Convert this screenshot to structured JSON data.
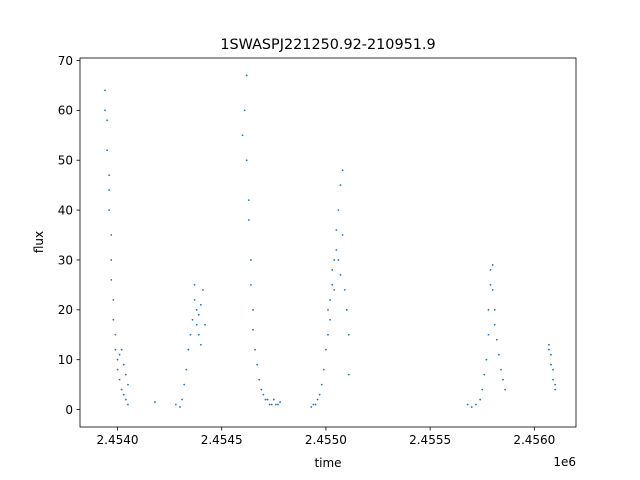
{
  "chart_data": {
    "type": "scatter",
    "title": "1SWASPJ221250.92-210951.9",
    "xlabel": "time",
    "ylabel": "flux",
    "x_offset_label": "1e6",
    "xlim": [
      2.45382,
      2.4562
    ],
    "ylim": [
      -3.5,
      70.5
    ],
    "x_ticks": [
      2.454,
      2.4545,
      2.455,
      2.4555,
      2.456
    ],
    "x_tick_labels": [
      "2.4540",
      "2.4545",
      "2.4550",
      "2.4555",
      "2.4560"
    ],
    "y_ticks": [
      0,
      10,
      20,
      30,
      40,
      50,
      60,
      70
    ],
    "y_tick_labels": [
      "0",
      "10",
      "20",
      "30",
      "40",
      "50",
      "60",
      "70"
    ],
    "grid": false,
    "marker_color": "#1f77b4",
    "series": [
      {
        "x": [
          2.45394,
          2.45394,
          2.45395,
          2.45395,
          2.45396,
          2.45396,
          2.45396,
          2.45397,
          2.45397,
          2.45397,
          2.45398,
          2.45398,
          2.45399,
          2.45399,
          2.454,
          2.454,
          2.45401,
          2.45401,
          2.45402,
          2.45402,
          2.45403,
          2.45403,
          2.45404,
          2.45404,
          2.45405,
          2.45405,
          2.45418,
          2.45428,
          2.4543,
          2.45431,
          2.45432,
          2.45433,
          2.45434,
          2.45435,
          2.45436,
          2.45437,
          2.45437,
          2.45438,
          2.45438,
          2.45439,
          2.45439,
          2.4544,
          2.4544,
          2.45441,
          2.45442,
          2.4546,
          2.45461,
          2.45462,
          2.45462,
          2.45463,
          2.45463,
          2.45464,
          2.45464,
          2.45465,
          2.45465,
          2.45466,
          2.45467,
          2.45468,
          2.45469,
          2.4547,
          2.45471,
          2.45472,
          2.45473,
          2.45474,
          2.45475,
          2.45476,
          2.45477,
          2.45478,
          2.45493,
          2.45494,
          2.45495,
          2.45496,
          2.45497,
          2.45498,
          2.45499,
          2.455,
          2.45501,
          2.45501,
          2.45502,
          2.45502,
          2.45503,
          2.45503,
          2.45504,
          2.45504,
          2.45505,
          2.45505,
          2.45506,
          2.45506,
          2.45507,
          2.45507,
          2.45508,
          2.45508,
          2.45509,
          2.4551,
          2.45511,
          2.45511,
          2.45568,
          2.4557,
          2.45572,
          2.45574,
          2.45575,
          2.45576,
          2.45577,
          2.45578,
          2.45578,
          2.45579,
          2.45579,
          2.4558,
          2.4558,
          2.45581,
          2.45581,
          2.45582,
          2.45583,
          2.45584,
          2.45585,
          2.45586,
          2.45607,
          2.45607,
          2.45608,
          2.45608,
          2.45609,
          2.45609,
          2.4561,
          2.4561
        ],
        "y": [
          64,
          60,
          58,
          52,
          47,
          44,
          40,
          35,
          30,
          26,
          22,
          18,
          15,
          12,
          10,
          8,
          11,
          6,
          4,
          12,
          9,
          3,
          7,
          2,
          5,
          1,
          1.5,
          1,
          0.5,
          2,
          5,
          8,
          12,
          15,
          18,
          22,
          25,
          20,
          17,
          15,
          19,
          13,
          21,
          24,
          17,
          55,
          60,
          67,
          50,
          42,
          38,
          30,
          25,
          20,
          16,
          12,
          9,
          6,
          4,
          3,
          2,
          2,
          1,
          1,
          2,
          1,
          1,
          1.5,
          0.5,
          1,
          1,
          2,
          3,
          5,
          8,
          12,
          15,
          20,
          18,
          22,
          25,
          28,
          30,
          24,
          32,
          36,
          40,
          30,
          45,
          27,
          48,
          35,
          24,
          20,
          15,
          7,
          1,
          0.5,
          1,
          2,
          4,
          7,
          10,
          15,
          20,
          25,
          28,
          29,
          24,
          20,
          17,
          14,
          11,
          8,
          6,
          4,
          13,
          12,
          11,
          9,
          8,
          6,
          5,
          4
        ]
      }
    ]
  }
}
